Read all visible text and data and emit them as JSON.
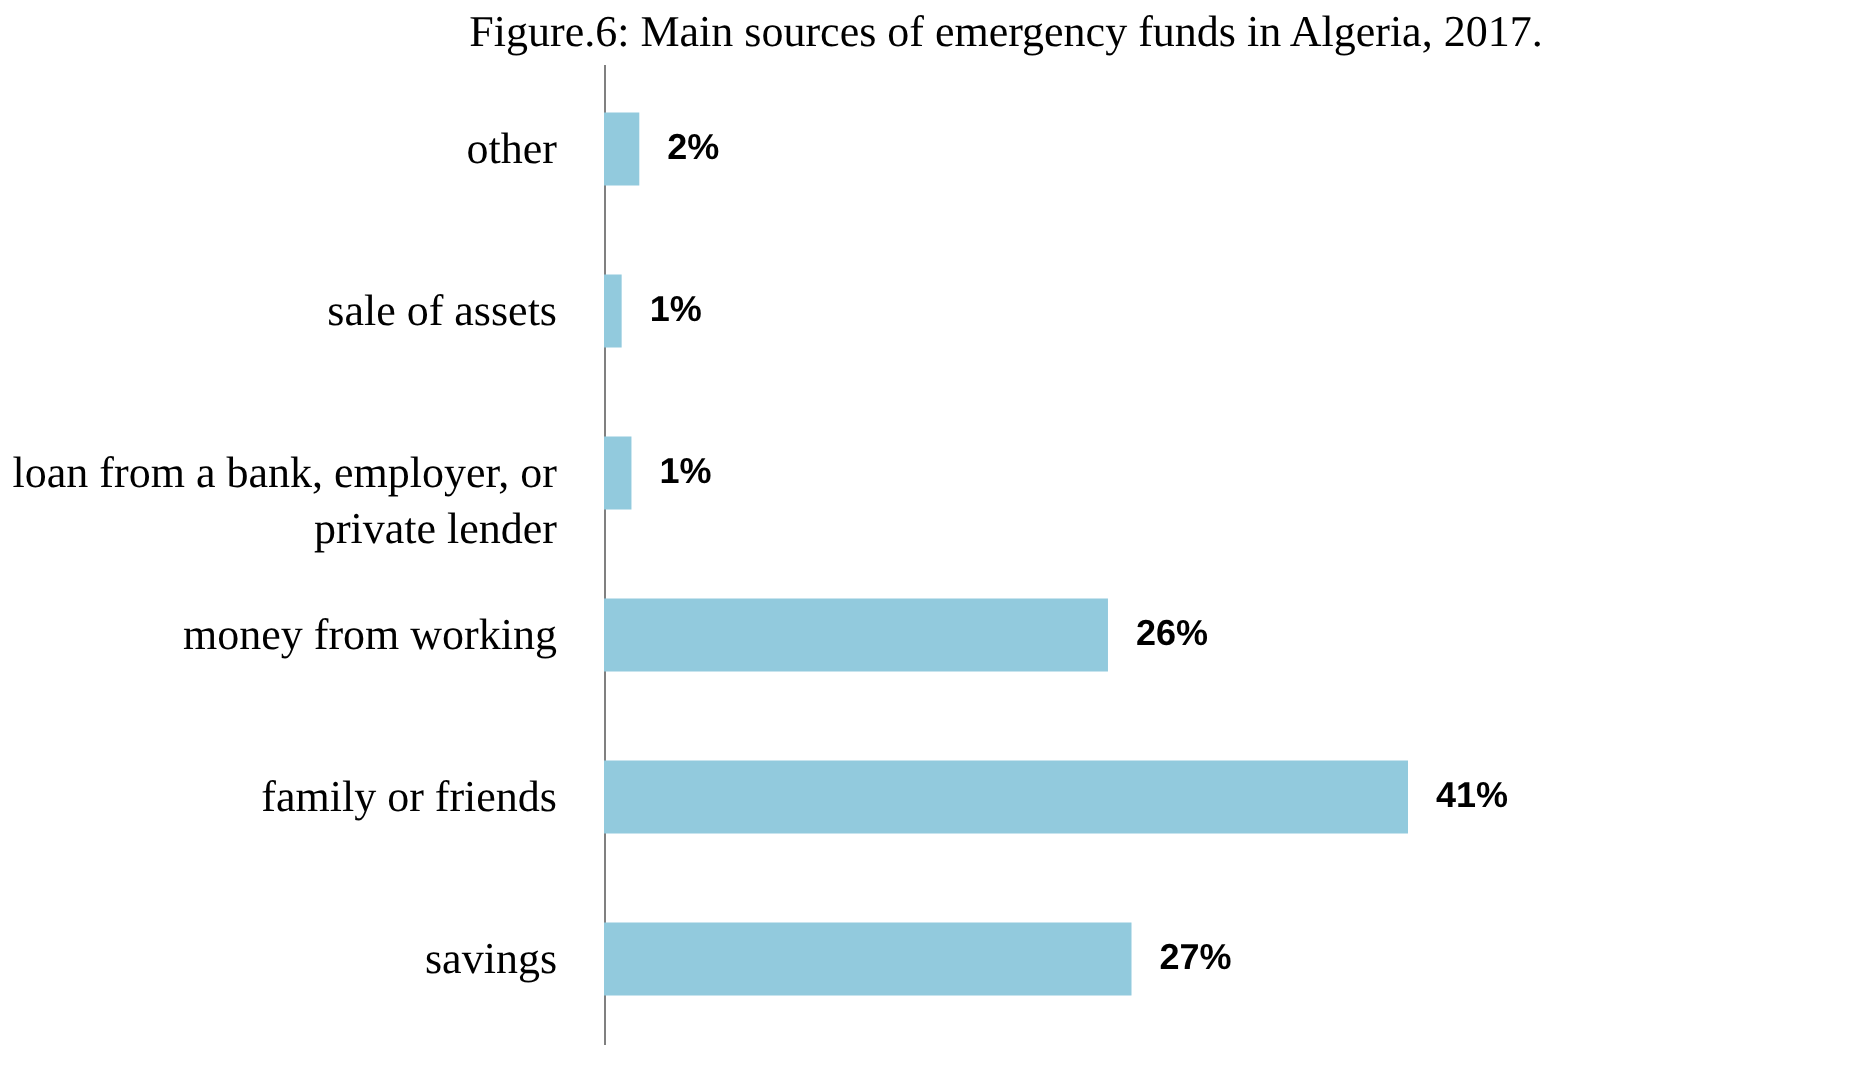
{
  "chart_data": {
    "type": "bar",
    "orientation": "horizontal",
    "title": "Figure.6: Main sources of emergency funds in Algeria, 2017.",
    "categories": [
      "other",
      "sale of assets",
      "loan from a bank, employer, or private lender",
      "money from working",
      "family or friends",
      "savings"
    ],
    "values": [
      1.8,
      0.9,
      1.4,
      25.7,
      41,
      26.9
    ],
    "value_labels": [
      "2%",
      "1%",
      "1%",
      "26%",
      "41%",
      "27%"
    ],
    "color": "#92cadd",
    "grid": false
  }
}
